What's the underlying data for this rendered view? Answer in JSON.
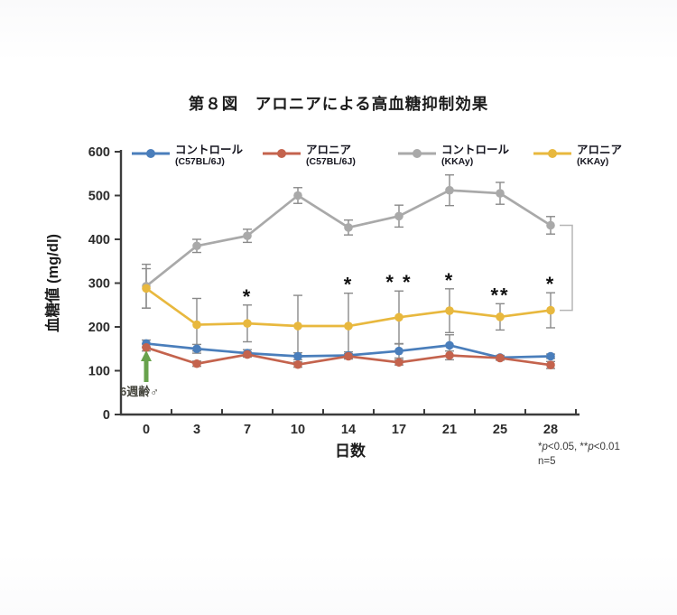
{
  "figure": {
    "title": "第８図　アロニアによる高血糖抑制効果"
  },
  "chart_data": {
    "type": "line",
    "title": "第８図　アロニアによる高血糖抑制効果",
    "x": [
      0,
      3,
      7,
      10,
      14,
      17,
      21,
      25,
      28
    ],
    "xlabel": "日数",
    "ylabel": "血糖値 (mg/dl)",
    "ylim": [
      0,
      600
    ],
    "ytick_step": 100,
    "grid": false,
    "legend_position": "top",
    "error_bar_color": "#8a8a8a",
    "series": [
      {
        "name": "コントロール",
        "subname": "(C57BL/6J)",
        "color": "#4a7ebb",
        "values": [
          162,
          150,
          140,
          133,
          135,
          145,
          158,
          130,
          133
        ],
        "errors": [
          8,
          10,
          8,
          8,
          8,
          16,
          24,
          5,
          5
        ]
      },
      {
        "name": "アロニア",
        "subname": "(C57BL/6J)",
        "color": "#c4634d",
        "values": [
          153,
          116,
          137,
          114,
          133,
          119,
          135,
          129,
          113
        ],
        "errors": [
          8,
          6,
          6,
          6,
          6,
          6,
          10,
          5,
          8
        ]
      },
      {
        "name": "コントロール",
        "subname": "(KKAy)",
        "color": "#a9a9a9",
        "values": [
          293,
          385,
          408,
          500,
          427,
          453,
          512,
          505,
          432
        ],
        "errors": [
          50,
          15,
          15,
          18,
          17,
          25,
          35,
          25,
          20
        ]
      },
      {
        "name": "アロニア",
        "subname": "(KKAy)",
        "color": "#e8b83e",
        "values": [
          288,
          205,
          208,
          202,
          202,
          222,
          237,
          223,
          238
        ],
        "errors": [
          45,
          60,
          42,
          70,
          75,
          60,
          50,
          30,
          40
        ]
      }
    ],
    "annotations": {
      "significance": [
        {
          "day": 7,
          "label": "*"
        },
        {
          "day": 14,
          "label": "*"
        },
        {
          "day": 17,
          "label": "* *"
        },
        {
          "day": 21,
          "label": "*"
        },
        {
          "day": 25,
          "label": "**"
        },
        {
          "day": 28,
          "label": "*"
        }
      ],
      "arrow_label": "6週齢♂",
      "arrow_color": "#68a24c",
      "bracket": {
        "day": 28,
        "from_series": "コントロール (KKAy)",
        "to_series": "アロニア (KKAy)",
        "color": "#b5b5b5"
      },
      "footnote_line1": "*p<0.05, **p<0.01",
      "footnote_line2": "n=5"
    }
  }
}
